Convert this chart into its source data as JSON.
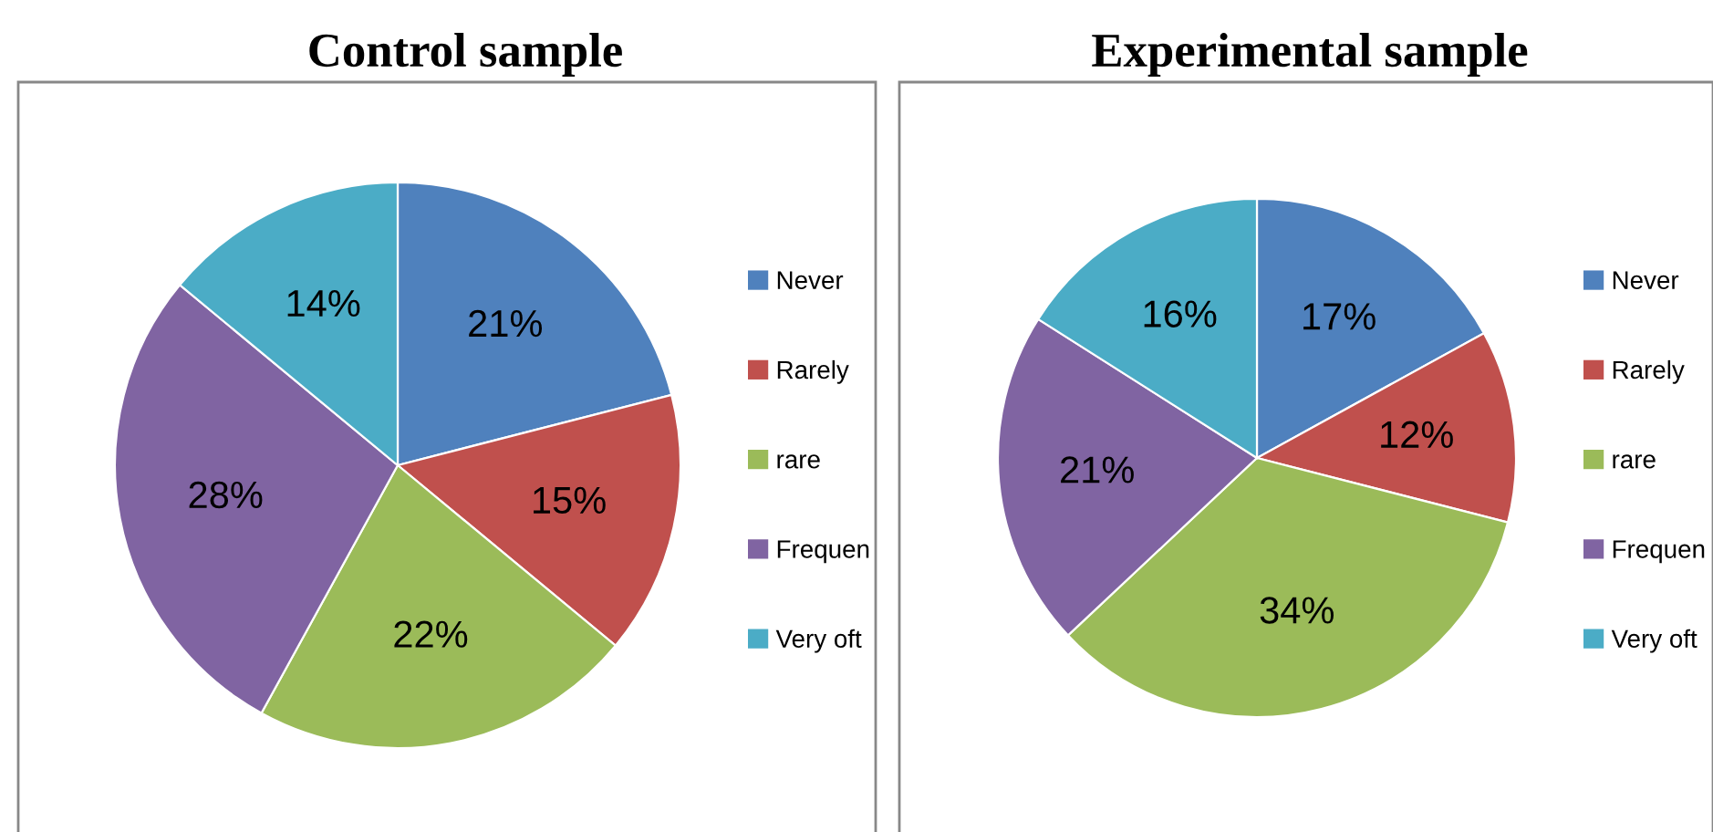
{
  "chart_data": [
    {
      "type": "pie",
      "title": "Control sample",
      "categories": [
        "Never",
        "Rarely",
        "rare",
        "Frequen",
        "Very oft"
      ],
      "values": [
        21,
        15,
        22,
        28,
        14
      ],
      "value_labels": [
        "21%",
        "15%",
        "22%",
        "28%",
        "14%"
      ],
      "colors": [
        "#4f81bd",
        "#c0504d",
        "#9bbb59",
        "#8064a2",
        "#4bacc6"
      ],
      "legend": "right"
    },
    {
      "type": "pie",
      "title": "Experimental sample",
      "categories": [
        "Never",
        "Rarely",
        "rare",
        "Frequen",
        "Very oft"
      ],
      "values": [
        17,
        12,
        34,
        21,
        16
      ],
      "value_labels": [
        "17%",
        "12%",
        "34%",
        "21%",
        "16%"
      ],
      "colors": [
        "#4f81bd",
        "#c0504d",
        "#9bbb59",
        "#8064a2",
        "#4bacc6"
      ],
      "legend": "right"
    }
  ]
}
